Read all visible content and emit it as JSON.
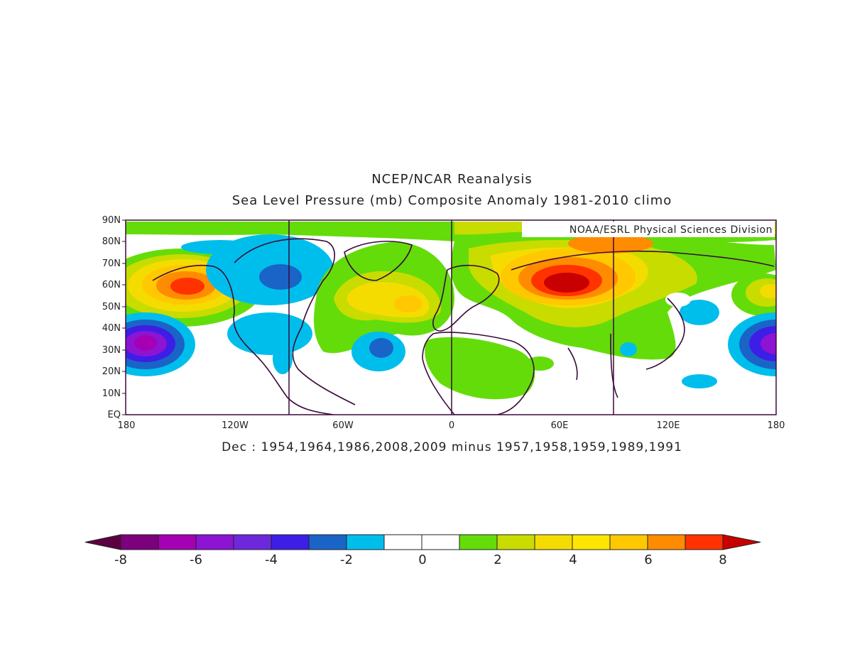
{
  "title": "NCEP/NCAR Reanalysis",
  "subtitle": "Sea Level Pressure (mb) Composite Anomaly 1981-2010 climo",
  "credit": "NOAA/ESRL Physical Sciences Division",
  "caption": "Dec : 1954,1964,1986,2008,2009 minus 1957,1958,1959,1989,1991",
  "lat_labels": [
    "90N",
    "80N",
    "70N",
    "60N",
    "50N",
    "40N",
    "30N",
    "20N",
    "10N",
    "EQ"
  ],
  "lon_labels": [
    "180",
    "120W",
    "60W",
    "0",
    "60E",
    "120E",
    "180"
  ],
  "colorbar": {
    "labels": [
      "-8",
      "-6",
      "-4",
      "-2",
      "0",
      "2",
      "4",
      "6",
      "8"
    ],
    "colors": [
      "#5c0042",
      "#7d007d",
      "#a500b4",
      "#8c14d2",
      "#6e28dc",
      "#3c1ee6",
      "#1a64c8",
      "#00beeb",
      "#ffffff",
      "#ffffff",
      "#64dc0a",
      "#c8dc00",
      "#f5dc00",
      "#ffe600",
      "#ffc800",
      "#ff8c00",
      "#ff3200",
      "#c80000"
    ]
  },
  "chart_data": {
    "type": "heatmap",
    "variable": "Sea Level Pressure (mb) Composite Anomaly",
    "units": "mb",
    "contour_levels": [
      -8,
      -7,
      -6,
      -5,
      -4,
      -3,
      -2,
      -1,
      0,
      1,
      2,
      3,
      4,
      5,
      6,
      7,
      8
    ],
    "x_range": [
      "180",
      "180"
    ],
    "y_range": [
      "EQ",
      "90N"
    ]
  }
}
